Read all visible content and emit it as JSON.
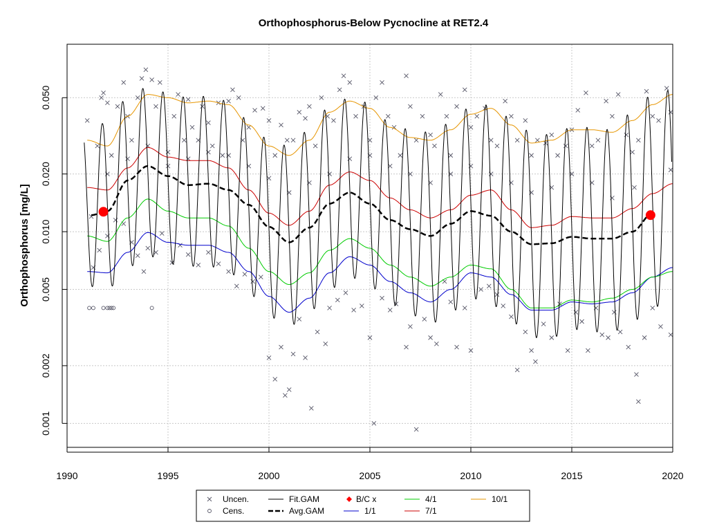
{
  "chart_data": {
    "type": "line",
    "title": "Orthophosphorus-Below Pycnocline at RET2.4",
    "xlabel": "",
    "ylabel": "Orthophosphorus [mg/L]",
    "xlim": [
      1990,
      2020
    ],
    "ylim": [
      0.00075,
      0.095
    ],
    "y_scale": "log",
    "grid": true,
    "x_ticks": [
      "1990",
      "1995",
      "2000",
      "2005",
      "2010",
      "2015",
      "2020"
    ],
    "y_ticks": [
      "0.001",
      "0.002",
      "0.005",
      "0.010",
      "0.020",
      "0.050"
    ],
    "colors": {
      "uncen": "#555566",
      "cens": "#555566",
      "fit_gam": "#000000",
      "avg_gam": "#000000",
      "bc": "#ff0000",
      "p1_1": "#0000cc",
      "p4_1": "#00cc00",
      "p7_1": "#cc0000",
      "p10_1": "#e69500"
    },
    "legend": {
      "placement": "bottom",
      "entries": [
        "Uncen.",
        "Cens.",
        "Fit.GAM",
        "Avg.GAM",
        "B/C x",
        "1/1",
        "4/1",
        "7/1",
        "10/1"
      ]
    },
    "bc_points": [
      {
        "x": 1991.8,
        "y": 0.0127
      },
      {
        "x": 2018.9,
        "y": 0.0122
      }
    ],
    "series": [
      {
        "name": "Avg.GAM",
        "x": [
          1991.2,
          1992,
          1993,
          1994,
          1995,
          1996,
          1997,
          1998,
          1999,
          2000,
          2001,
          2002,
          2003,
          2004,
          2005,
          2006,
          2007,
          2008,
          2009,
          2010,
          2011,
          2012,
          2013,
          2014,
          2015,
          2016,
          2017,
          2018,
          2019
        ],
        "values": [
          0.0122,
          0.0128,
          0.0185,
          0.022,
          0.0195,
          0.0175,
          0.0178,
          0.0165,
          0.0138,
          0.0106,
          0.0088,
          0.0105,
          0.014,
          0.016,
          0.014,
          0.0115,
          0.0103,
          0.0095,
          0.011,
          0.0128,
          0.0121,
          0.01,
          0.0086,
          0.0087,
          0.0094,
          0.0092,
          0.0092,
          0.01,
          0.0125
        ]
      },
      {
        "name": "1/1",
        "x": [
          1991,
          1992,
          1993,
          1994,
          1995,
          1996,
          1997,
          1998,
          1999,
          2000,
          2001,
          2002,
          2003,
          2004,
          2005,
          2006,
          2007,
          2008,
          2009,
          2010,
          2011,
          2012,
          2013,
          2014,
          2015,
          2016,
          2017,
          2018,
          2019,
          2020
        ],
        "values": [
          0.0062,
          0.0061,
          0.0078,
          0.0099,
          0.0088,
          0.0085,
          0.0085,
          0.0078,
          0.0062,
          0.0046,
          0.0038,
          0.0045,
          0.0061,
          0.0074,
          0.0067,
          0.0055,
          0.0048,
          0.0043,
          0.005,
          0.0061,
          0.0058,
          0.0047,
          0.0039,
          0.0039,
          0.0043,
          0.0042,
          0.0043,
          0.0048,
          0.0058,
          0.0065
        ]
      },
      {
        "name": "4/1",
        "x": [
          1991,
          1992,
          1993,
          1994,
          1995,
          1996,
          1997,
          1998,
          1999,
          2000,
          2001,
          2002,
          2003,
          2004,
          2005,
          2006,
          2007,
          2008,
          2009,
          2010,
          2011,
          2012,
          2013,
          2014,
          2015,
          2016,
          2017,
          2018,
          2019,
          2020
        ],
        "values": [
          0.0095,
          0.0089,
          0.0118,
          0.0148,
          0.0128,
          0.0118,
          0.0118,
          0.0107,
          0.0082,
          0.0062,
          0.0053,
          0.0061,
          0.008,
          0.0092,
          0.0082,
          0.0067,
          0.0058,
          0.0052,
          0.0058,
          0.0067,
          0.0064,
          0.005,
          0.004,
          0.004,
          0.0044,
          0.0043,
          0.0045,
          0.005,
          0.0058,
          0.0062
        ]
      },
      {
        "name": "7/1",
        "x": [
          1991,
          1992,
          1993,
          1994,
          1995,
          1996,
          1997,
          1998,
          1999,
          2000,
          2001,
          2002,
          2003,
          2004,
          2005,
          2006,
          2007,
          2008,
          2009,
          2010,
          2011,
          2012,
          2013,
          2014,
          2015,
          2016,
          2017,
          2018,
          2019,
          2020
        ],
        "values": [
          0.017,
          0.0165,
          0.0215,
          0.0275,
          0.0245,
          0.0235,
          0.0235,
          0.0215,
          0.0165,
          0.0125,
          0.0108,
          0.0128,
          0.0175,
          0.0205,
          0.0185,
          0.015,
          0.013,
          0.0118,
          0.013,
          0.0155,
          0.0165,
          0.013,
          0.0105,
          0.0108,
          0.012,
          0.0118,
          0.0118,
          0.0132,
          0.0158,
          0.0178
        ]
      },
      {
        "name": "10/1",
        "x": [
          1991,
          1992,
          1993,
          1994,
          1995,
          1996,
          1997,
          1998,
          1999,
          2000,
          2001,
          2002,
          2003,
          2004,
          2005,
          2006,
          2007,
          2008,
          2009,
          2010,
          2011,
          2012,
          2013,
          2014,
          2015,
          2016,
          2017,
          2018,
          2019,
          2020
        ],
        "values": [
          0.03,
          0.028,
          0.04,
          0.052,
          0.05,
          0.047,
          0.048,
          0.046,
          0.036,
          0.028,
          0.025,
          0.03,
          0.042,
          0.048,
          0.044,
          0.035,
          0.031,
          0.03,
          0.034,
          0.041,
          0.044,
          0.036,
          0.029,
          0.03,
          0.034,
          0.034,
          0.033,
          0.038,
          0.046,
          0.052
        ]
      },
      {
        "name": "Fit.GAM",
        "kind": "seasonal",
        "x": [
          1991,
          1992,
          1993,
          1994,
          1995,
          1996,
          1997,
          1998,
          1999,
          2000,
          2001,
          2002,
          2003,
          2004,
          2005,
          2006,
          2007,
          2008,
          2009,
          2010,
          2011,
          2012,
          2013,
          2014,
          2015,
          2016,
          2017,
          2018,
          2019,
          2020
        ],
        "peak": [
          0.035,
          0.037,
          0.05,
          0.057,
          0.053,
          0.05,
          0.051,
          0.048,
          0.038,
          0.03,
          0.028,
          0.034,
          0.045,
          0.05,
          0.047,
          0.037,
          0.034,
          0.033,
          0.037,
          0.045,
          0.046,
          0.039,
          0.033,
          0.032,
          0.035,
          0.035,
          0.034,
          0.042,
          0.052,
          0.055
        ],
        "trough": [
          0.0052,
          0.005,
          0.0065,
          0.0075,
          0.0068,
          0.0066,
          0.0066,
          0.0062,
          0.0048,
          0.0036,
          0.0032,
          0.0038,
          0.005,
          0.0058,
          0.0052,
          0.0042,
          0.0037,
          0.0033,
          0.0038,
          0.0045,
          0.0042,
          0.0034,
          0.0028,
          0.0028,
          0.0031,
          0.003,
          0.003,
          0.0034,
          0.004,
          0.0045
        ]
      }
    ],
    "uncensored": [
      [
        1991.0,
        0.038
      ],
      [
        1991.2,
        0.012
      ],
      [
        1991.5,
        0.028
      ],
      [
        1991.7,
        0.05
      ],
      [
        1991.8,
        0.053
      ],
      [
        1992.0,
        0.047
      ],
      [
        1992.2,
        0.025
      ],
      [
        1992.5,
        0.045
      ],
      [
        1992.8,
        0.06
      ],
      [
        1993.0,
        0.04
      ],
      [
        1993.2,
        0.03
      ],
      [
        1993.5,
        0.05
      ],
      [
        1993.7,
        0.063
      ],
      [
        1993.9,
        0.07
      ],
      [
        1994.2,
        0.062
      ],
      [
        1994.4,
        0.045
      ],
      [
        1994.6,
        0.06
      ],
      [
        1995.0,
        0.022
      ],
      [
        1995.3,
        0.04
      ],
      [
        1995.5,
        0.052
      ],
      [
        1995.8,
        0.03
      ],
      [
        1996.0,
        0.049
      ],
      [
        1996.2,
        0.035
      ],
      [
        1996.5,
        0.03
      ],
      [
        1996.7,
        0.045
      ],
      [
        1997.0,
        0.037
      ],
      [
        1997.2,
        0.028
      ],
      [
        1997.5,
        0.047
      ],
      [
        1997.7,
        0.025
      ],
      [
        1998.0,
        0.048
      ],
      [
        1998.2,
        0.055
      ],
      [
        1998.5,
        0.05
      ],
      [
        1998.7,
        0.03
      ],
      [
        1999.0,
        0.035
      ],
      [
        1999.3,
        0.043
      ],
      [
        1999.7,
        0.044
      ],
      [
        2000.0,
        0.038
      ],
      [
        2000.3,
        0.025
      ],
      [
        2000.6,
        0.036
      ],
      [
        2000.9,
        0.03
      ],
      [
        2001.2,
        0.03
      ],
      [
        2001.5,
        0.042
      ],
      [
        2001.8,
        0.039
      ],
      [
        2002.0,
        0.045
      ],
      [
        2002.3,
        0.028
      ],
      [
        2002.6,
        0.05
      ],
      [
        2002.9,
        0.04
      ],
      [
        2003.2,
        0.038
      ],
      [
        2003.5,
        0.055
      ],
      [
        2003.7,
        0.065
      ],
      [
        2004.0,
        0.06
      ],
      [
        2004.3,
        0.04
      ],
      [
        2004.7,
        0.045
      ],
      [
        2005.0,
        0.03
      ],
      [
        2005.3,
        0.05
      ],
      [
        2005.6,
        0.06
      ],
      [
        2005.9,
        0.04
      ],
      [
        2006.2,
        0.035
      ],
      [
        2006.5,
        0.025
      ],
      [
        2006.8,
        0.065
      ],
      [
        2007.0,
        0.045
      ],
      [
        2007.3,
        0.03
      ],
      [
        2007.6,
        0.04
      ],
      [
        2008.0,
        0.032
      ],
      [
        2008.2,
        0.028
      ],
      [
        2008.5,
        0.052
      ],
      [
        2008.8,
        0.04
      ],
      [
        2009.0,
        0.025
      ],
      [
        2009.3,
        0.045
      ],
      [
        2009.7,
        0.055
      ],
      [
        2010.0,
        0.035
      ],
      [
        2010.3,
        0.04
      ],
      [
        2010.7,
        0.044
      ],
      [
        2011.0,
        0.03
      ],
      [
        2011.3,
        0.028
      ],
      [
        2011.7,
        0.048
      ],
      [
        2012.0,
        0.04
      ],
      [
        2012.3,
        0.03
      ],
      [
        2012.7,
        0.038
      ],
      [
        2013.0,
        0.025
      ],
      [
        2013.3,
        0.03
      ],
      [
        2013.7,
        0.029
      ],
      [
        2014.0,
        0.032
      ],
      [
        2014.3,
        0.025
      ],
      [
        2014.7,
        0.028
      ],
      [
        2015.0,
        0.034
      ],
      [
        2015.3,
        0.043
      ],
      [
        2015.7,
        0.053
      ],
      [
        2016.0,
        0.028
      ],
      [
        2016.3,
        0.03
      ],
      [
        2016.7,
        0.048
      ],
      [
        2017.0,
        0.04
      ],
      [
        2017.3,
        0.052
      ],
      [
        2017.7,
        0.032
      ],
      [
        2018.0,
        0.026
      ],
      [
        2018.3,
        0.03
      ],
      [
        2018.7,
        0.054
      ],
      [
        2019.0,
        0.04
      ],
      [
        2019.3,
        0.038
      ],
      [
        2019.7,
        0.056
      ],
      [
        2019.9,
        0.042
      ],
      [
        1991.3,
        0.0065
      ],
      [
        1991.6,
        0.008
      ],
      [
        1992.0,
        0.0095
      ],
      [
        1992.4,
        0.0115
      ],
      [
        1992.8,
        0.011
      ],
      [
        1993.2,
        0.0088
      ],
      [
        1993.5,
        0.0075
      ],
      [
        1993.8,
        0.0062
      ],
      [
        1994.0,
        0.0082
      ],
      [
        1994.4,
        0.0078
      ],
      [
        1994.7,
        0.0098
      ],
      [
        1995.2,
        0.0069
      ],
      [
        1995.6,
        0.0085
      ],
      [
        1996.0,
        0.0076
      ],
      [
        1996.5,
        0.0067
      ],
      [
        1997.0,
        0.0078
      ],
      [
        1997.5,
        0.0068
      ],
      [
        1998.0,
        0.0062
      ],
      [
        1998.4,
        0.0052
      ],
      [
        1998.8,
        0.006
      ],
      [
        1999.2,
        0.0055
      ],
      [
        1999.6,
        0.0058
      ],
      [
        2000.0,
        0.0022
      ],
      [
        2000.3,
        0.0017
      ],
      [
        2000.6,
        0.0025
      ],
      [
        2000.8,
        0.0014
      ],
      [
        2001.0,
        0.0015
      ],
      [
        2001.2,
        0.0023
      ],
      [
        2001.5,
        0.0035
      ],
      [
        2001.8,
        0.0022
      ],
      [
        2002.1,
        0.0012
      ],
      [
        2002.4,
        0.003
      ],
      [
        2002.8,
        0.0026
      ],
      [
        2003.0,
        0.004
      ],
      [
        2003.4,
        0.0044
      ],
      [
        2003.8,
        0.0048
      ],
      [
        2004.2,
        0.0039
      ],
      [
        2004.6,
        0.0041
      ],
      [
        2005.0,
        0.0028
      ],
      [
        2005.2,
        0.001
      ],
      [
        2005.6,
        0.0045
      ],
      [
        2006.0,
        0.0039
      ],
      [
        2006.3,
        0.0042
      ],
      [
        2006.8,
        0.0025
      ],
      [
        2007.0,
        0.0032
      ],
      [
        2007.3,
        0.00093
      ],
      [
        2007.7,
        0.0035
      ],
      [
        2008.0,
        0.0028
      ],
      [
        2008.3,
        0.0026
      ],
      [
        2008.7,
        0.0055
      ],
      [
        2009.0,
        0.0043
      ],
      [
        2009.3,
        0.0025
      ],
      [
        2009.7,
        0.004
      ],
      [
        2010.0,
        0.0024
      ],
      [
        2010.5,
        0.005
      ],
      [
        2010.9,
        0.0052
      ],
      [
        2011.3,
        0.0047
      ],
      [
        2011.6,
        0.0041
      ],
      [
        2012.0,
        0.0036
      ],
      [
        2012.3,
        0.0019
      ],
      [
        2012.7,
        0.003
      ],
      [
        2013.0,
        0.0024
      ],
      [
        2013.2,
        0.0021
      ],
      [
        2013.6,
        0.0033
      ],
      [
        2014.0,
        0.0028
      ],
      [
        2014.4,
        0.0042
      ],
      [
        2014.8,
        0.0024
      ],
      [
        2015.2,
        0.0038
      ],
      [
        2015.5,
        0.0034
      ],
      [
        2015.8,
        0.0024
      ],
      [
        2016.2,
        0.004
      ],
      [
        2016.5,
        0.0029
      ],
      [
        2016.8,
        0.0028
      ],
      [
        2017.1,
        0.0038
      ],
      [
        2017.4,
        0.003
      ],
      [
        2017.8,
        0.0025
      ],
      [
        2018.2,
        0.0018
      ],
      [
        2018.3,
        0.0013
      ],
      [
        2018.6,
        0.0028
      ],
      [
        2019.0,
        0.004
      ],
      [
        2019.4,
        0.0032
      ],
      [
        2019.9,
        0.0029
      ],
      [
        2019.9,
        0.021
      ],
      [
        2018.1,
        0.017
      ],
      [
        2017.0,
        0.015
      ],
      [
        2016.0,
        0.018
      ],
      [
        2015.0,
        0.02
      ],
      [
        2014.0,
        0.017
      ],
      [
        2013.0,
        0.016
      ],
      [
        2012.0,
        0.018
      ],
      [
        2011.0,
        0.02
      ],
      [
        2010.0,
        0.022
      ],
      [
        2009.0,
        0.02
      ],
      [
        2008.0,
        0.018
      ],
      [
        2007.0,
        0.02
      ],
      [
        2006.0,
        0.022
      ],
      [
        2005.0,
        0.025
      ],
      [
        2004.0,
        0.024
      ],
      [
        2003.0,
        0.02
      ],
      [
        2002.0,
        0.018
      ],
      [
        2001.0,
        0.016
      ],
      [
        2000.0,
        0.019
      ],
      [
        1999.0,
        0.022
      ],
      [
        1998.0,
        0.025
      ],
      [
        1997.0,
        0.026
      ],
      [
        1996.0,
        0.024
      ],
      [
        1995.0,
        0.026
      ],
      [
        1994.0,
        0.028
      ],
      [
        1993.0,
        0.024
      ],
      [
        1992.0,
        0.02
      ]
    ],
    "censored": [
      [
        1991.1,
        0.004
      ],
      [
        1991.3,
        0.004
      ],
      [
        1991.8,
        0.004
      ],
      [
        1992.0,
        0.004
      ],
      [
        1992.1,
        0.004
      ],
      [
        1992.2,
        0.004
      ],
      [
        1992.3,
        0.004
      ],
      [
        1994.2,
        0.004
      ]
    ]
  }
}
